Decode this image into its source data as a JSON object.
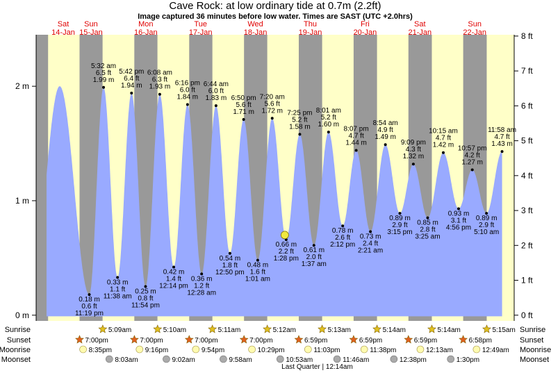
{
  "chart_data": {
    "type": "area",
    "title": "Cave Rock: at low  ordinary tide at 0.7m (2.2ft)",
    "subtitle": "Image captured 36 minutes before low water. Times are SAST (UTC +2.0hrs)",
    "left_axis": {
      "unit": "m",
      "range": [
        -0.05,
        2.45
      ],
      "ticks": [
        0,
        1,
        2
      ],
      "tick_labels": [
        "0 m",
        "1 m",
        "2 m"
      ]
    },
    "right_axis": {
      "unit": "ft",
      "ticks": [
        0,
        1,
        2,
        3,
        4,
        5,
        6,
        7,
        8
      ],
      "tick_labels": [
        "0 ft",
        "1 ft",
        "2 ft",
        "3 ft",
        "4 ft",
        "5 ft",
        "6 ft",
        "7 ft",
        "8 ft"
      ]
    },
    "x_range_days": [
      14.0,
      22.72
    ],
    "days": [
      {
        "name": "Sat",
        "date": "14-Jan"
      },
      {
        "name": "Sun",
        "date": "15-Jan"
      },
      {
        "name": "Mon",
        "date": "16-Jan"
      },
      {
        "name": "Tue",
        "date": "17-Jan"
      },
      {
        "name": "Wed",
        "date": "18-Jan"
      },
      {
        "name": "Thu",
        "date": "19-Jan"
      },
      {
        "name": "Fri",
        "date": "20-Jan"
      },
      {
        "name": "Sat",
        "date": "21-Jan"
      },
      {
        "name": "Sun",
        "date": "22-Jan"
      }
    ],
    "night_bands": [
      [
        14.0,
        14.218
      ],
      [
        14.792,
        15.212
      ],
      [
        15.791,
        16.213
      ],
      [
        16.792,
        17.215
      ],
      [
        17.792,
        18.216
      ],
      [
        18.791,
        19.217
      ],
      [
        19.791,
        20.218
      ],
      [
        20.791,
        21.218
      ],
      [
        21.79,
        22.219
      ]
    ],
    "tides": [
      {
        "t": 14.43,
        "m": 2.0,
        "label": []
      },
      {
        "t": 14.97,
        "m": 0.18,
        "type": "low",
        "label": [
          "0.18 m",
          "0.6 ft",
          "11:19 pm"
        ]
      },
      {
        "t": 15.23,
        "m": 1.99,
        "type": "high",
        "label": [
          "5:32 am",
          "6.5 ft",
          "1.99 m"
        ]
      },
      {
        "t": 15.485,
        "m": 0.33,
        "type": "low",
        "label": [
          "0.33 m",
          "1.1 ft",
          "11:38 am"
        ]
      },
      {
        "t": 15.74,
        "m": 1.94,
        "type": "high",
        "label": [
          "5:42 pm",
          "6.4 ft",
          "1.94 m"
        ]
      },
      {
        "t": 15.996,
        "m": 0.25,
        "type": "low",
        "label": [
          "0.25 m",
          "0.8 ft",
          "11:54 pm"
        ]
      },
      {
        "t": 16.255,
        "m": 1.93,
        "type": "high",
        "label": [
          "6:08 am",
          "6.3 ft",
          "1.93 m"
        ]
      },
      {
        "t": 16.51,
        "m": 0.42,
        "type": "low",
        "label": [
          "0.42 m",
          "1.4 ft",
          "12:14 pm"
        ]
      },
      {
        "t": 16.761,
        "m": 1.84,
        "type": "high",
        "label": [
          "6:16 pm",
          "6.0 ft",
          "1.84 m"
        ]
      },
      {
        "t": 17.019,
        "m": 0.36,
        "type": "low",
        "label": [
          "0.36 m",
          "1.2 ft",
          "12:28 am"
        ]
      },
      {
        "t": 17.281,
        "m": 1.83,
        "type": "high",
        "label": [
          "6:44 am",
          "6.0 ft",
          "1.83 m"
        ]
      },
      {
        "t": 17.535,
        "m": 0.54,
        "type": "low",
        "label": [
          "0.54 m",
          "1.8 ft",
          "12:50 pm"
        ]
      },
      {
        "t": 17.785,
        "m": 1.71,
        "type": "high",
        "label": [
          "6:50 pm",
          "5.6 ft",
          "1.71 m"
        ]
      },
      {
        "t": 18.042,
        "m": 0.48,
        "type": "low",
        "label": [
          "0.48 m",
          "1.6 ft",
          "1:01 am"
        ]
      },
      {
        "t": 18.306,
        "m": 1.72,
        "type": "high",
        "label": [
          "7:20 am",
          "5.6 ft",
          "1.72 m"
        ]
      },
      {
        "t": 18.561,
        "m": 0.66,
        "type": "low",
        "label": [
          "0.66 m",
          "2.2 ft",
          "1:28 pm"
        ]
      },
      {
        "t": 18.809,
        "m": 1.58,
        "type": "high",
        "label": [
          "7:25 pm",
          "5.2 ft",
          "1.58 m"
        ]
      },
      {
        "t": 19.067,
        "m": 0.61,
        "type": "low",
        "label": [
          "0.61 m",
          "2.0 ft",
          "1:37 am"
        ]
      },
      {
        "t": 19.334,
        "m": 1.6,
        "type": "high",
        "label": [
          "8:01 am",
          "5.2 ft",
          "1.60 m"
        ]
      },
      {
        "t": 19.592,
        "m": 0.78,
        "type": "low",
        "label": [
          "0.78 m",
          "2.6 ft",
          "2:12 pm"
        ]
      },
      {
        "t": 19.838,
        "m": 1.44,
        "type": "high",
        "label": [
          "8:07 pm",
          "4.7 ft",
          "1.44 m"
        ]
      },
      {
        "t": 20.098,
        "m": 0.73,
        "type": "low",
        "label": [
          "0.73 m",
          "2.4 ft",
          "2:21 am"
        ]
      },
      {
        "t": 20.371,
        "m": 1.49,
        "type": "high",
        "label": [
          "8:54 am",
          "4.9 ft",
          "1.49 m"
        ]
      },
      {
        "t": 20.635,
        "m": 0.89,
        "type": "low",
        "label": [
          "0.89 m",
          "2.9 ft",
          "3:15 pm"
        ]
      },
      {
        "t": 20.881,
        "m": 1.32,
        "type": "high",
        "label": [
          "9:09 pm",
          "4.3 ft",
          "1.32 m"
        ]
      },
      {
        "t": 21.142,
        "m": 0.85,
        "type": "low",
        "label": [
          "0.85 m",
          "2.8 ft",
          "3:25 am"
        ]
      },
      {
        "t": 21.427,
        "m": 1.42,
        "type": "high",
        "label": [
          "10:15 am",
          "4.7 ft",
          "1.42 m"
        ]
      },
      {
        "t": 21.706,
        "m": 0.93,
        "type": "low",
        "label": [
          "0.93 m",
          "3.1 ft",
          "4:56 pm"
        ]
      },
      {
        "t": 21.956,
        "m": 1.27,
        "type": "high",
        "label": [
          "10:57 pm",
          "4.2 ft",
          "1.27 m"
        ]
      },
      {
        "t": 22.215,
        "m": 0.89,
        "type": "low",
        "label": [
          "0.89 m",
          "2.9 ft",
          "5:10 am"
        ]
      },
      {
        "t": 22.499,
        "m": 1.43,
        "type": "high",
        "label": [
          "11:58 am",
          "4.7 ft",
          "1.43 m"
        ]
      }
    ],
    "current": {
      "t": 18.536,
      "m": 0.7
    },
    "colors": {
      "day": "#ffffc8",
      "night": "#999999",
      "water": "#99aaff",
      "sun": "#e0c020",
      "sunset": "#e06020",
      "moon": "#fffbb0",
      "moonset": "#aaaaaa"
    }
  },
  "rows": {
    "labels": [
      "Sunrise",
      "Sunset",
      "Moonrise",
      "Moonset"
    ],
    "sunrise": [
      {
        "t": 15.215,
        "label": "5:09am"
      },
      {
        "t": 16.215,
        "label": "5:10am"
      },
      {
        "t": 17.215,
        "label": "5:11am"
      },
      {
        "t": 18.216,
        "label": "5:12am"
      },
      {
        "t": 19.217,
        "label": "5:13am"
      },
      {
        "t": 20.218,
        "label": "5:14am"
      },
      {
        "t": 21.218,
        "label": "5:14am"
      },
      {
        "t": 22.219,
        "label": "5:15am"
      }
    ],
    "sunset": [
      {
        "t": 14.792,
        "label": "7:00pm"
      },
      {
        "t": 15.792,
        "label": "7:00pm"
      },
      {
        "t": 16.792,
        "label": "7:00pm"
      },
      {
        "t": 17.792,
        "label": "7:00pm"
      },
      {
        "t": 18.791,
        "label": "6:59pm"
      },
      {
        "t": 19.791,
        "label": "6:59pm"
      },
      {
        "t": 20.791,
        "label": "6:59pm"
      },
      {
        "t": 21.79,
        "label": "6:58pm"
      }
    ],
    "moonrise": [
      {
        "t": 14.857,
        "label": "8:35pm"
      },
      {
        "t": 15.886,
        "label": "9:16pm"
      },
      {
        "t": 16.913,
        "label": "9:54pm"
      },
      {
        "t": 17.937,
        "label": "10:29pm"
      },
      {
        "t": 18.96,
        "label": "11:03pm"
      },
      {
        "t": 19.985,
        "label": "11:38pm"
      },
      {
        "t": 21.009,
        "label": "12:13am"
      },
      {
        "t": 22.034,
        "label": "12:49am"
      }
    ],
    "moonset": [
      {
        "t": 15.335,
        "label": "8:03am"
      },
      {
        "t": 16.376,
        "label": "9:02am"
      },
      {
        "t": 17.415,
        "label": "9:58am"
      },
      {
        "t": 18.453,
        "label": "10:53am"
      },
      {
        "t": 19.49,
        "label": "11:46am"
      },
      {
        "t": 20.526,
        "label": "12:38pm"
      },
      {
        "t": 21.563,
        "label": "1:30pm"
      }
    ],
    "moon_phase": {
      "t": 19.0,
      "label": "Last Quarter | 12:14am"
    }
  }
}
